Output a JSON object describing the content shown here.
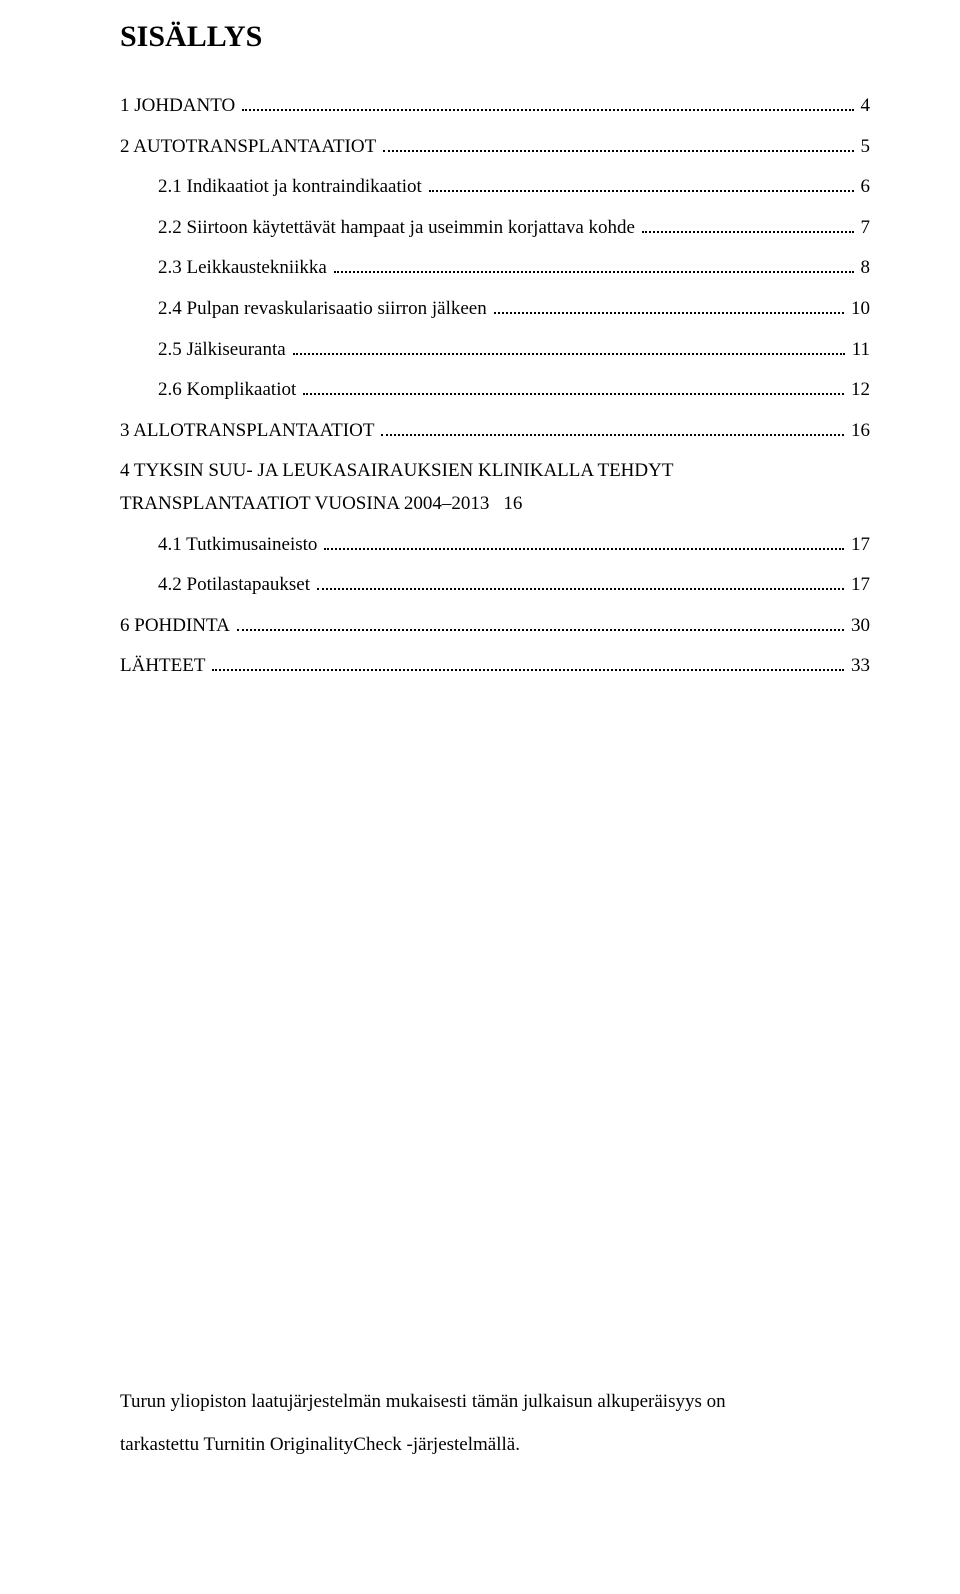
{
  "title": "SISÄLLYS",
  "toc": [
    {
      "label": "1 JOHDANTO",
      "page": "4",
      "sub": false
    },
    {
      "label": "2 AUTOTRANSPLANTAATIOT",
      "page": "5",
      "sub": false
    },
    {
      "label": "2.1 Indikaatiot ja kontraindikaatiot",
      "page": "6",
      "sub": true
    },
    {
      "label": "2.2 Siirtoon käytettävät hampaat ja useimmin korjattava kohde",
      "page": "7",
      "sub": true
    },
    {
      "label": "2.3 Leikkaustekniikka",
      "page": "8",
      "sub": true
    },
    {
      "label": "2.4 Pulpan revaskularisaatio siirron jälkeen",
      "page": "10",
      "sub": true
    },
    {
      "label": "2.5 Jälkiseuranta",
      "page": "11",
      "sub": true
    },
    {
      "label": "2.6 Komplikaatiot",
      "page": "12",
      "sub": true
    },
    {
      "label": "3 ALLOTRANSPLANTAATIOT",
      "page": "16",
      "sub": false
    },
    {
      "label_line1": "4 TYKSIN SUU- JA LEUKASAIRAUKSIEN KLINIKALLA TEHDYT",
      "label_line2": "TRANSPLANTAATIOT VUOSINA 2004–2013",
      "page": "16",
      "sub": false,
      "multiline": true
    },
    {
      "label": "4.1 Tutkimusaineisto",
      "page": "17",
      "sub": true
    },
    {
      "label": "4.2 Potilastapaukset",
      "page": "17",
      "sub": true
    },
    {
      "label": "6 POHDINTA",
      "page": "30",
      "sub": false
    },
    {
      "label": "LÄHTEET",
      "page": "33",
      "sub": false
    }
  ],
  "footer_line1": "Turun yliopiston laatujärjestelmän mukaisesti tämän julkaisun alkuperäisyys on",
  "footer_line2": "tarkastettu Turnitin OriginalityCheck -järjestelmällä."
}
